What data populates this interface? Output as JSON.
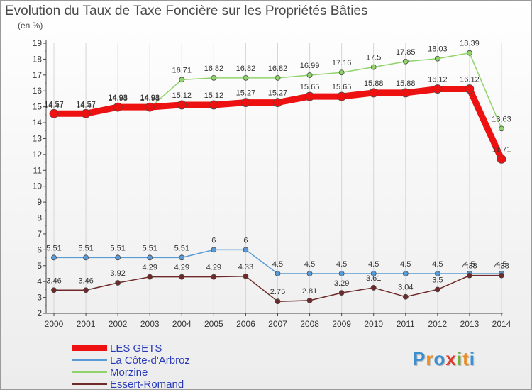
{
  "title": "Evolution du Taux de Taxe Foncière sur les Propriétés Bâties",
  "subtitle": "(en %)",
  "logo": {
    "letters": [
      "P",
      "r",
      "o",
      "x",
      "i",
      "t",
      "i"
    ],
    "colors": [
      "#3a8fd0",
      "#f08c1c",
      "#3a8fd0",
      "#e23a2a",
      "#6db23a",
      "#f08c1c",
      "#3a8fd0"
    ]
  },
  "chart_data": {
    "type": "line",
    "x": [
      "2000",
      "2001",
      "2002",
      "2003",
      "2004",
      "2005",
      "2006",
      "2007",
      "2008",
      "2009",
      "2010",
      "2011",
      "2012",
      "2013",
      "2014"
    ],
    "ylim": [
      2,
      19
    ],
    "yticks": [
      "2",
      "3",
      "4",
      "5",
      "6",
      "7",
      "8",
      "9",
      "10",
      "11",
      "12",
      "13",
      "14",
      "15",
      "16",
      "17",
      "18",
      "19"
    ],
    "grid": "vertical",
    "legend_position": "bottom-left",
    "series": [
      {
        "name": "LES GETS",
        "color": "#ee1111",
        "values": [
          14.57,
          14.57,
          14.98,
          14.98,
          15.12,
          15.12,
          15.27,
          15.27,
          15.65,
          15.65,
          15.88,
          15.88,
          16.12,
          16.12,
          11.71
        ],
        "labels": [
          "14.57",
          "14.57",
          "14.98",
          "14.98",
          "15.12",
          "15.12",
          "15.27",
          "15.27",
          "15.65",
          "15.65",
          "15.88",
          "15.88",
          "16.12",
          "16.12",
          "11.71"
        ]
      },
      {
        "name": "La Côte-d'Arbroz",
        "color": "#5b9bd5",
        "values": [
          5.51,
          5.51,
          5.51,
          5.51,
          5.51,
          6,
          6,
          4.5,
          4.5,
          4.5,
          4.5,
          4.5,
          4.5,
          4.5,
          4.5
        ],
        "labels": [
          "5.51",
          "5.51",
          "5.51",
          "5.51",
          "5.51",
          "6",
          "6",
          "4.5",
          "4.5",
          "4.5",
          "4.5",
          "4.5",
          "4.5",
          "4.5",
          "4.5"
        ]
      },
      {
        "name": "Morzine",
        "color": "#8fd36a",
        "values": [
          14.47,
          14.47,
          14.93,
          14.93,
          16.71,
          16.82,
          16.82,
          16.82,
          16.99,
          17.16,
          17.5,
          17.85,
          18.03,
          18.39,
          13.63
        ],
        "labels": [
          "14.47",
          "14.47",
          "14.93",
          "14.93",
          "16.71",
          "16.82",
          "16.82",
          "16.82",
          "16.99",
          "17.16",
          "17.5",
          "17.85",
          "18.03",
          "18.39",
          "13.63"
        ]
      },
      {
        "name": "Essert-Romand",
        "color": "#6e2a2a",
        "values": [
          3.46,
          3.46,
          3.92,
          4.29,
          4.29,
          4.29,
          4.33,
          2.75,
          2.81,
          3.29,
          3.61,
          3.04,
          3.5,
          4.38,
          4.38
        ],
        "labels": [
          "3.46",
          "3.46",
          "3.92",
          "4.29",
          "4.29",
          "4.29",
          "4.33",
          "2.75",
          "2.81",
          "3.29",
          "3.61",
          "3.04",
          "3.5",
          "4.38",
          "4.38"
        ]
      }
    ]
  }
}
